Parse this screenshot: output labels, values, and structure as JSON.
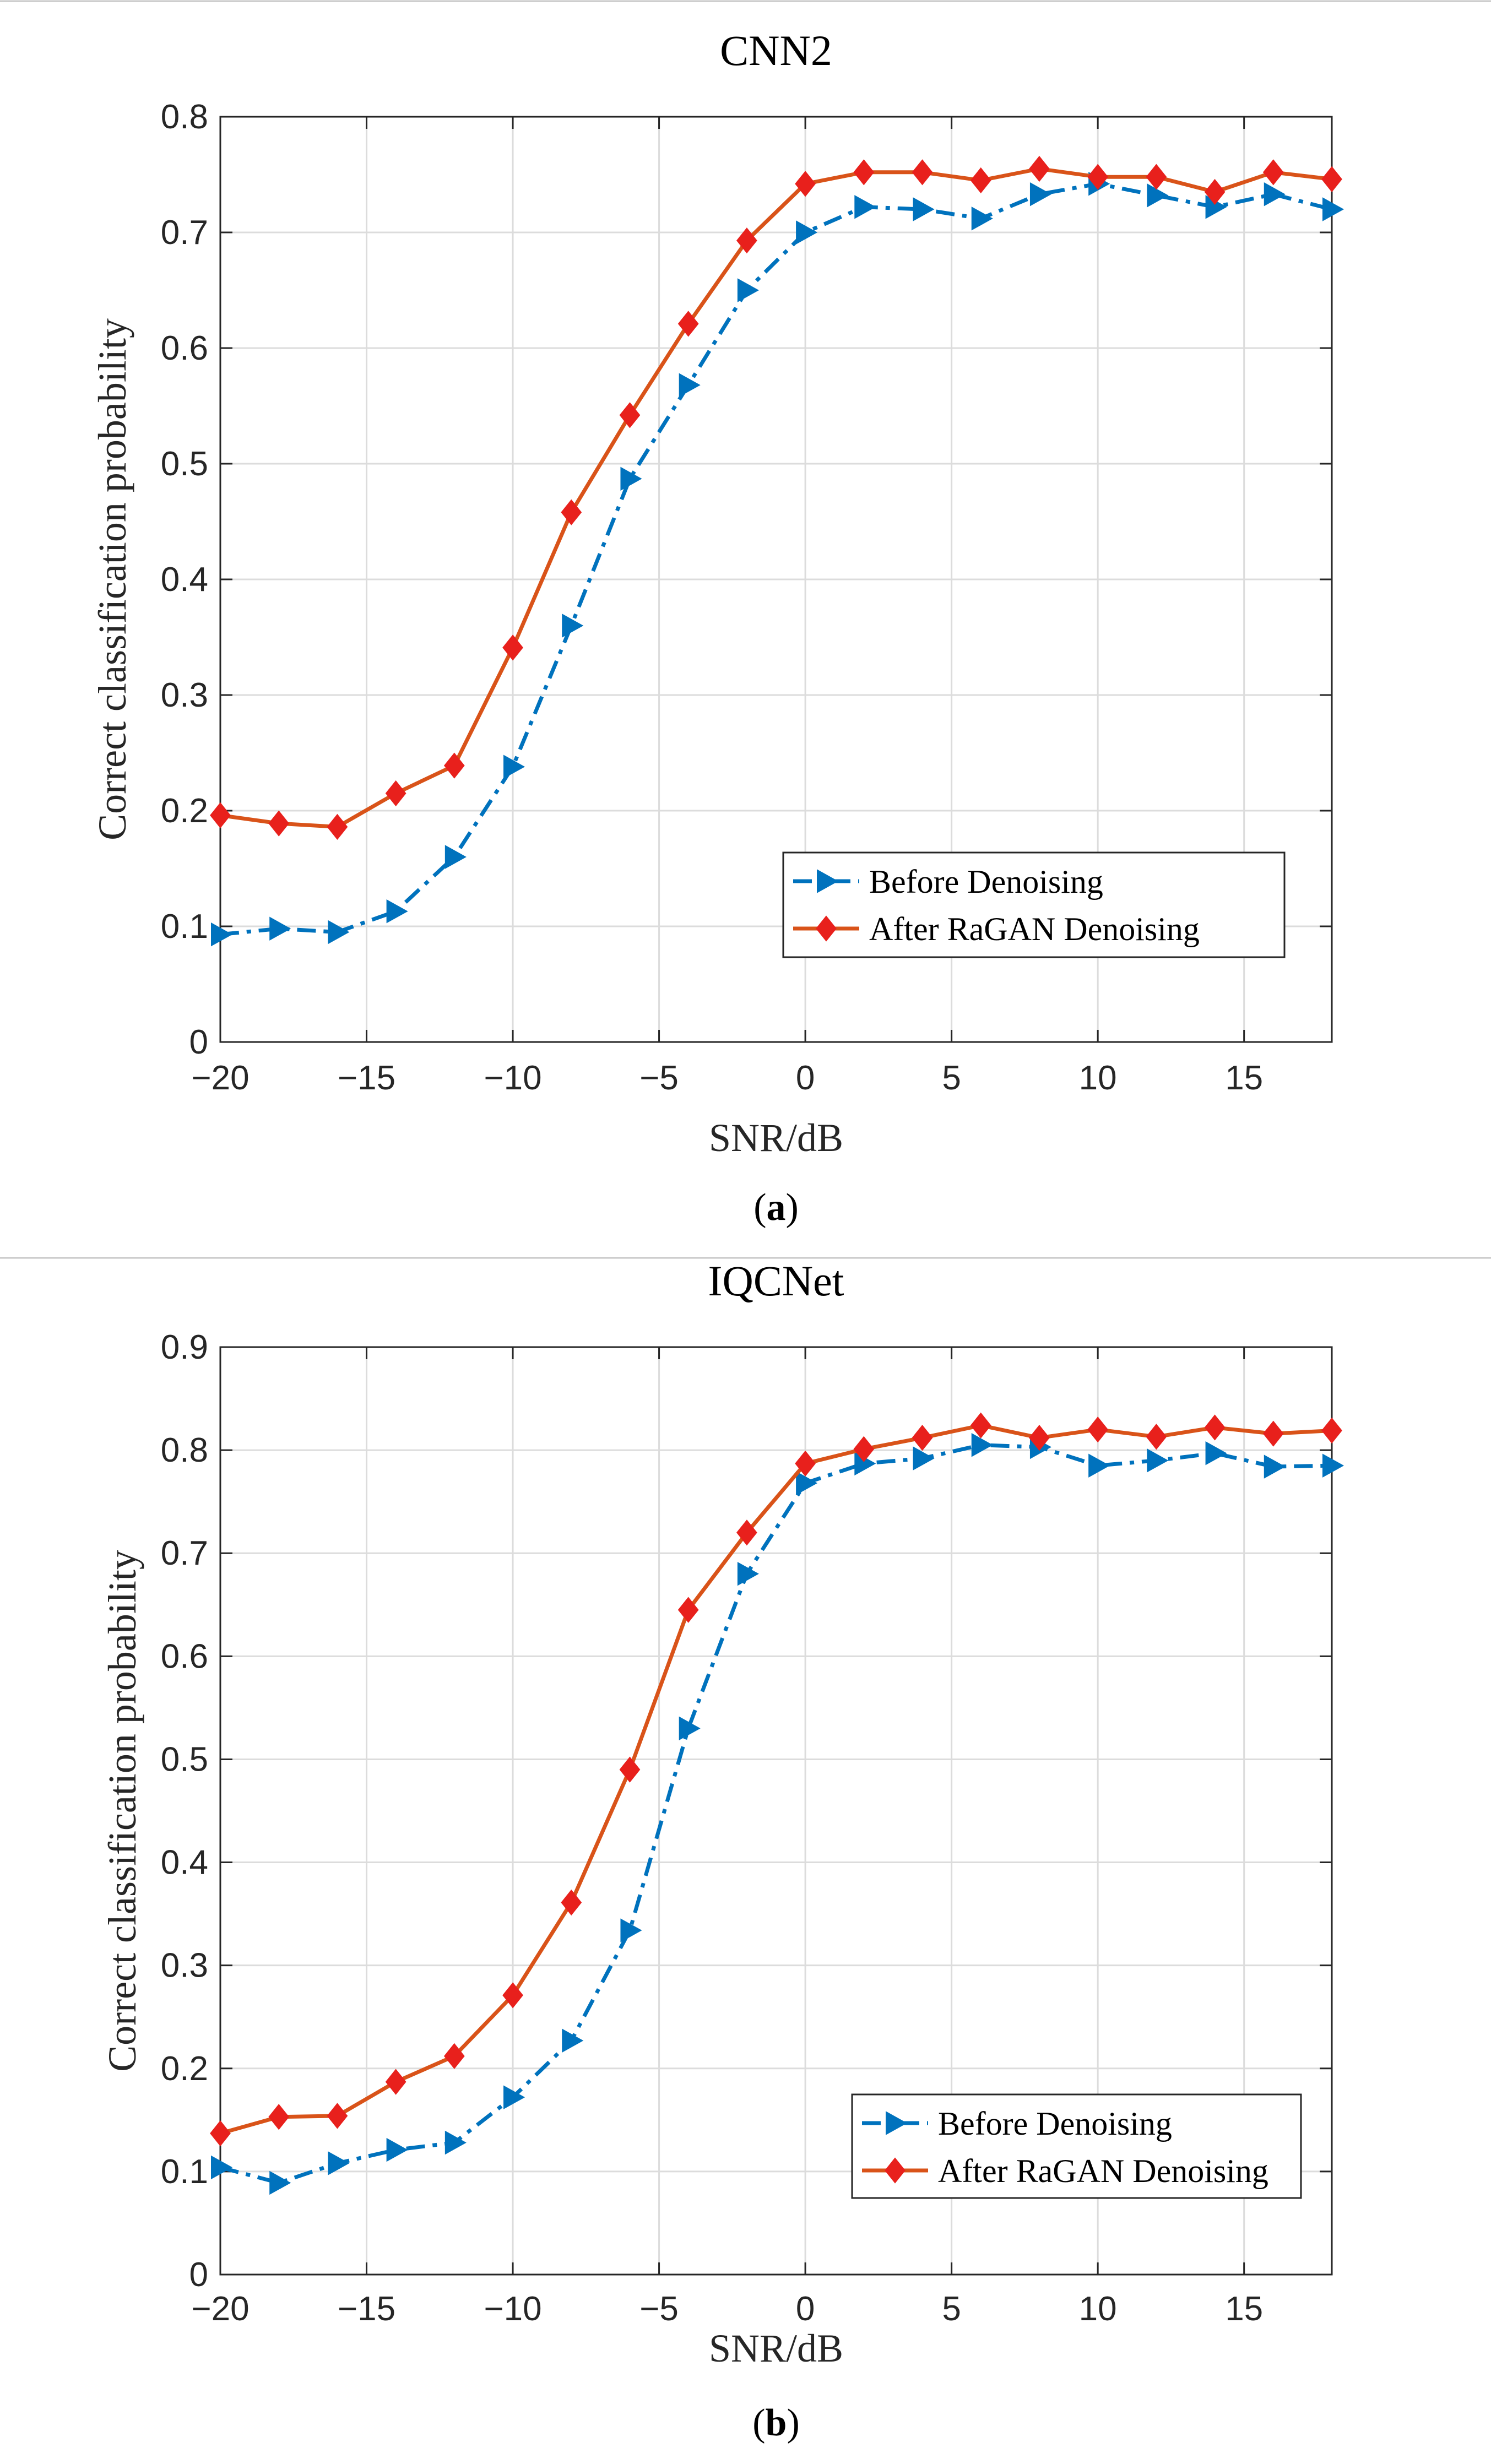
{
  "chart_data": [
    {
      "type": "line",
      "title": "CNN2",
      "caption": {
        "open": "(",
        "letter": "a",
        "close": ")"
      },
      "xlabel": "SNR/dB",
      "ylabel": "Correct classification probability",
      "xlim": [
        -20,
        18
      ],
      "ylim": [
        0,
        0.8
      ],
      "xticks": [
        -20,
        -15,
        -10,
        -5,
        0,
        5,
        10,
        15
      ],
      "xtick_labels": [
        "−20",
        "−15",
        "−10",
        "−5",
        "0",
        "5",
        "10",
        "15"
      ],
      "yticks": [
        0,
        0.1,
        0.2,
        0.3,
        0.4,
        0.5,
        0.6,
        0.7,
        0.8
      ],
      "ytick_labels": [
        "0",
        "0.1",
        "0.2",
        "0.3",
        "0.4",
        "0.5",
        "0.6",
        "0.7",
        "0.8"
      ],
      "grid": true,
      "legend_position": "lower-right",
      "x": [
        -20,
        -18,
        -16,
        -14,
        -12,
        -10,
        -8,
        -6,
        -4,
        -2,
        0,
        2,
        4,
        6,
        8,
        10,
        12,
        14,
        16,
        18
      ],
      "series": [
        {
          "name": "Before Denoising",
          "color": "#0072BD",
          "style": "dash-dot",
          "marker": "triangle-right",
          "values": [
            0.093,
            0.098,
            0.095,
            0.113,
            0.16,
            0.238,
            0.36,
            0.487,
            0.568,
            0.65,
            0.7,
            0.722,
            0.72,
            0.712,
            0.733,
            0.742,
            0.732,
            0.722,
            0.733,
            0.72
          ]
        },
        {
          "name": "After RaGAN Denoising",
          "color": "#D95319",
          "style": "solid",
          "marker": "diamond",
          "values": [
            0.196,
            0.189,
            0.186,
            0.215,
            0.239,
            0.341,
            0.458,
            0.542,
            0.621,
            0.693,
            0.742,
            0.752,
            0.752,
            0.745,
            0.755,
            0.748,
            0.748,
            0.735,
            0.752,
            0.746
          ]
        }
      ]
    },
    {
      "type": "line",
      "title": "IQCNet",
      "caption": {
        "open": "(",
        "letter": "b",
        "close": ")"
      },
      "xlabel": "SNR/dB",
      "ylabel": "Correct classification probability",
      "xlim": [
        -20,
        18
      ],
      "ylim": [
        0,
        0.9
      ],
      "xticks": [
        -20,
        -15,
        -10,
        -5,
        0,
        5,
        10,
        15
      ],
      "xtick_labels": [
        "−20",
        "−15",
        "−10",
        "−5",
        "0",
        "5",
        "10",
        "15"
      ],
      "yticks": [
        0,
        0.1,
        0.2,
        0.3,
        0.4,
        0.5,
        0.6,
        0.7,
        0.8,
        0.9
      ],
      "ytick_labels": [
        "0",
        "0.1",
        "0.2",
        "0.3",
        "0.4",
        "0.5",
        "0.6",
        "0.7",
        "0.8",
        "0.9"
      ],
      "grid": true,
      "legend_position": "lower-right",
      "x": [
        -20,
        -18,
        -16,
        -14,
        -12,
        -10,
        -8,
        -6,
        -4,
        -2,
        0,
        2,
        4,
        6,
        8,
        10,
        12,
        14,
        16,
        18
      ],
      "series": [
        {
          "name": "Before Denoising",
          "color": "#0072BD",
          "style": "dash-dot",
          "marker": "triangle-right",
          "values": [
            0.104,
            0.089,
            0.108,
            0.121,
            0.128,
            0.172,
            0.227,
            0.334,
            0.53,
            0.68,
            0.768,
            0.787,
            0.792,
            0.805,
            0.803,
            0.785,
            0.79,
            0.797,
            0.784,
            0.785
          ]
        },
        {
          "name": "After RaGAN Denoising",
          "color": "#D95319",
          "style": "solid",
          "marker": "diamond",
          "values": [
            0.137,
            0.153,
            0.154,
            0.187,
            0.212,
            0.271,
            0.361,
            0.49,
            0.645,
            0.72,
            0.787,
            0.801,
            0.812,
            0.824,
            0.812,
            0.82,
            0.813,
            0.822,
            0.816,
            0.819
          ]
        }
      ]
    }
  ]
}
